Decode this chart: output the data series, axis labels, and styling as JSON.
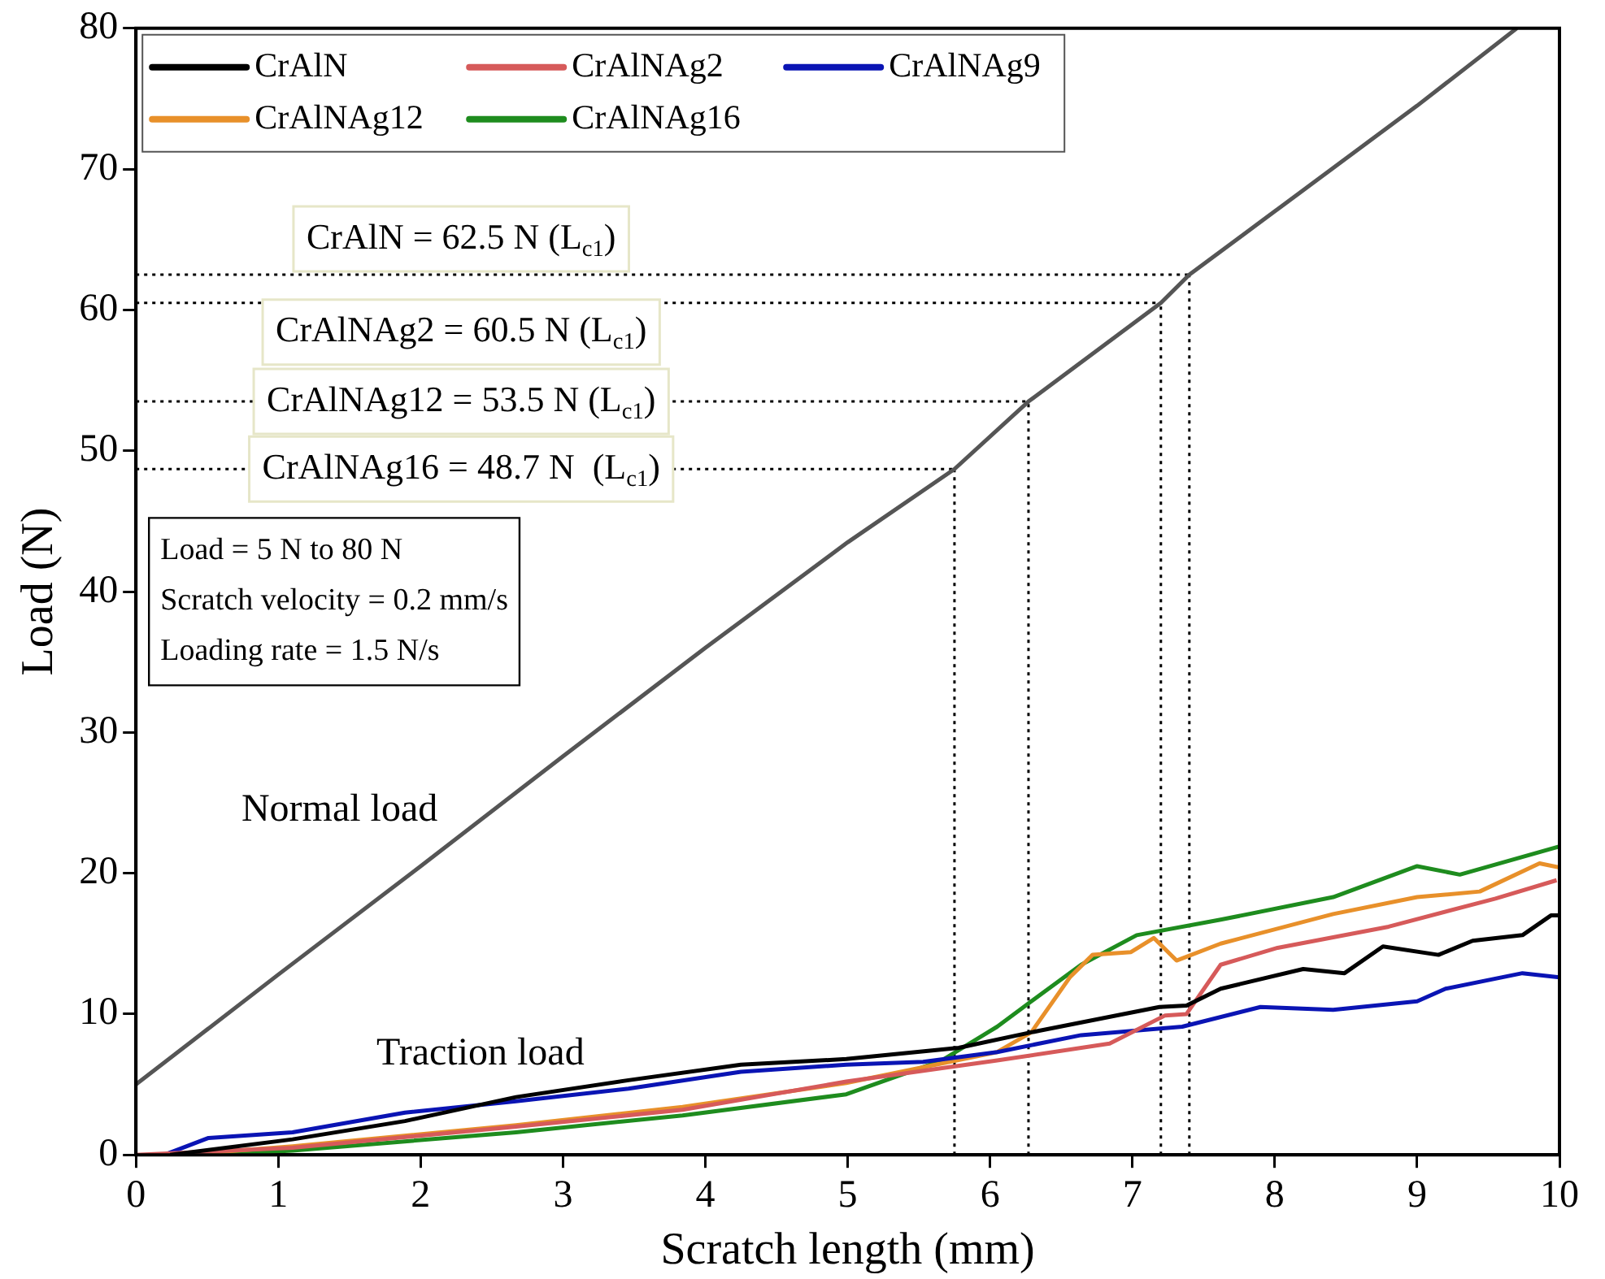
{
  "chart_data": {
    "type": "line",
    "xlabel": "Scratch length (mm)",
    "ylabel": "Load (N)",
    "xlim": [
      0,
      10
    ],
    "xticks": [
      0,
      1,
      2,
      3,
      4,
      5,
      6,
      7,
      8,
      9,
      10
    ],
    "ylim": [
      0,
      80
    ],
    "yticks": [
      0,
      10,
      20,
      30,
      40,
      50,
      60,
      70,
      80
    ],
    "grid": false,
    "legend": "top left",
    "marker": "none",
    "line_style": "solid",
    "series": [
      {
        "color": "#555555",
        "x": [
          0,
          1,
          2,
          3,
          4,
          5,
          5.75,
          6.27,
          7.2,
          7.4,
          8,
          9,
          9.7
        ],
        "values": [
          5,
          12.8,
          20.5,
          28.3,
          36,
          43.5,
          48.7,
          53.5,
          60.5,
          62.5,
          67,
          74.5,
          80
        ]
      },
      {
        "name": "CrAlN",
        "color": "#000000",
        "x": [
          0.24,
          1.1,
          1.89,
          2.67,
          3.46,
          4.25,
          4.99,
          5.78,
          6.29,
          7.19,
          7.38,
          7.62,
          8.2,
          8.49,
          8.76,
          9.15,
          9.39,
          9.74,
          9.94,
          10
        ],
        "values": [
          0,
          1.1,
          2.4,
          4.1,
          5.3,
          6.4,
          6.8,
          7.6,
          8.7,
          10.5,
          10.6,
          11.8,
          13.2,
          12.9,
          14.8,
          14.2,
          15.2,
          15.6,
          17,
          17
        ]
      },
      {
        "name": "CrAlNAg2",
        "color": "#d65a5a",
        "x": [
          0,
          1.1,
          2.67,
          3.84,
          4.99,
          6.05,
          6.84,
          7.23,
          7.38,
          7.62,
          8.02,
          8.8,
          9.55,
          9.98
        ],
        "values": [
          0,
          0.5,
          2,
          3.2,
          5.2,
          6.7,
          7.9,
          9.9,
          10,
          13.5,
          14.7,
          16.2,
          18.2,
          19.5
        ]
      },
      {
        "name": "CrAlNAg9",
        "color": "#0a14b4",
        "x": [
          0.2,
          0.51,
          1.1,
          1.89,
          2.67,
          3.46,
          4.25,
          4.99,
          5.53,
          6.05,
          6.64,
          7.35,
          7.9,
          8.41,
          9,
          9.2,
          9.74,
          10
        ],
        "values": [
          0,
          1.2,
          1.6,
          3,
          3.8,
          4.7,
          5.9,
          6.4,
          6.6,
          7.3,
          8.5,
          9.1,
          10.5,
          10.3,
          10.9,
          11.8,
          12.9,
          12.6
        ]
      },
      {
        "name": "CrAlNAg12",
        "color": "#e8902a",
        "x": [
          0.3,
          1.1,
          2.67,
          3.84,
          4.99,
          6.05,
          6.29,
          6.56,
          6.72,
          6.99,
          7.15,
          7.31,
          7.62,
          8.41,
          9,
          9.44,
          9.86,
          10
        ],
        "values": [
          0,
          0.6,
          2.1,
          3.4,
          5.1,
          7.3,
          8.7,
          12.6,
          14.2,
          14.4,
          15.4,
          13.8,
          15,
          17.1,
          18.3,
          18.7,
          20.7,
          20.4
        ]
      },
      {
        "name": "CrAlNAg16",
        "color": "#1e8c1e",
        "x": [
          0.5,
          1.1,
          2.67,
          3.84,
          4.99,
          5.66,
          6.05,
          6.29,
          6.64,
          7.03,
          7.62,
          8.41,
          9,
          9.3,
          10
        ],
        "values": [
          0,
          0.3,
          1.6,
          2.8,
          4.3,
          6.7,
          9.1,
          10.9,
          13.5,
          15.6,
          16.7,
          18.3,
          20.5,
          19.9,
          21.9
        ]
      }
    ],
    "ref_lines": [
      {
        "axis": "y",
        "value": 62.5,
        "label": "CrAlN = 62.5 N (L$_{c1}$)",
        "color": "#000000",
        "line_style": "dotted"
      },
      {
        "axis": "y",
        "value": 60.5,
        "label": "CrAlNAg2 = 60.5 N (L$_{c1}$)",
        "color": "#000000",
        "line_style": "dotted"
      },
      {
        "axis": "y",
        "value": 53.5,
        "label": "CrAlNAg12 = 53.5 N (L$_{c1}$)",
        "color": "#000000",
        "line_style": "dotted"
      },
      {
        "axis": "y",
        "value": 48.7,
        "label": "CrAlNAg16 = 48.7 N  (L$_{c1}$)",
        "color": "#000000",
        "line_style": "dotted"
      },
      {
        "axis": "x",
        "value": 7.4,
        "color": "#000000",
        "line_style": "dotted"
      },
      {
        "axis": "x",
        "value": 7.2,
        "color": "#000000",
        "line_style": "dotted"
      },
      {
        "axis": "x",
        "value": 6.27,
        "color": "#000000",
        "line_style": "dotted"
      },
      {
        "axis": "x",
        "value": 5.75,
        "color": "#000000",
        "line_style": "dotted"
      }
    ],
    "annotations": [
      "Load = 5 N to 80 N",
      "Scratch velocity = 0.2 mm/s",
      "Loading rate = 1.5 N/s",
      "Normal load",
      "Traction load"
    ]
  }
}
